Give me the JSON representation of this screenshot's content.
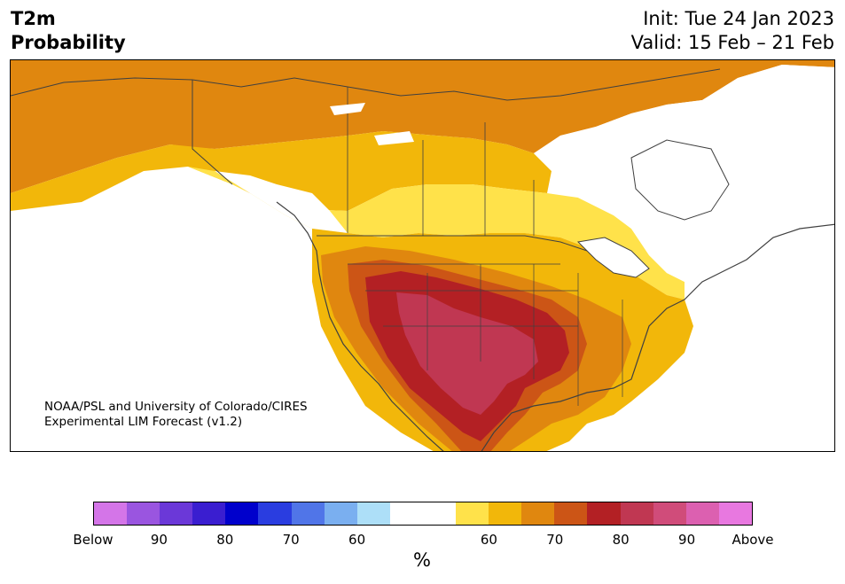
{
  "title": {
    "left_line1": "T2m",
    "left_line2": "Probability",
    "right_line1": "Init: Tue 24 Jan 2023",
    "right_line2": "Valid: 15 Feb – 21 Feb"
  },
  "map": {
    "credit_line1": "NOAA/PSL and University of Colorado/CIRES",
    "credit_line2": "Experimental LIM Forecast (v1.2)",
    "region": "North America"
  },
  "colorbar": {
    "colors": [
      "#d475e8",
      "#9a55e0",
      "#6b38d8",
      "#3a1ed0",
      "#0000cc",
      "#2a3de0",
      "#5075e8",
      "#7aaff0",
      "#addff8",
      "#ffffff",
      "#ffffff",
      "#ffe24a",
      "#f2b70a",
      "#e0870f",
      "#cc5516",
      "#b32024",
      "#c03752",
      "#d04c7a",
      "#dc60b0",
      "#e878e0"
    ],
    "tick_labels": [
      "Below",
      "90",
      "80",
      "70",
      "60",
      "60",
      "70",
      "80",
      "90",
      "Above"
    ],
    "unit": "%"
  }
}
